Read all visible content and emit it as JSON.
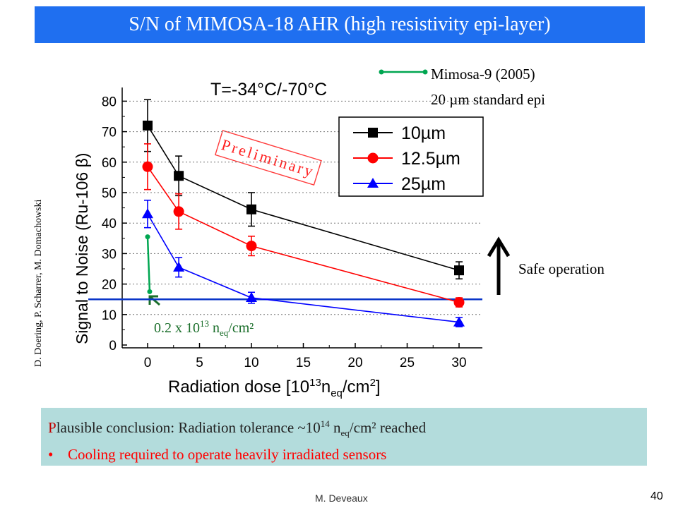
{
  "slide": {
    "title": "S/N of MIMOSA-18 AHR (high resistivity epi-layer)",
    "side_credit": "D. Doering, P. Scharrer, M. Domachowski",
    "temperature_label": "T=-34°C/-70°C",
    "preliminary_stamp": "Preliminary",
    "mimosa_label_line1": "Mimosa-9 (2005)",
    "mimosa_label_line2": "20 µm standard epi",
    "safe_operation": "Safe operation",
    "dose_annotation_main": "0.2 x 10",
    "dose_annotation_sup": "13",
    "dose_annotation_n": " n",
    "dose_annotation_sub": "eq",
    "dose_annotation_unit": "/cm²",
    "conclusion_first": "P",
    "conclusion_rest": "lausible conclusion: Radiation tolerance ~10",
    "conclusion_sup": "14",
    "conclusion_n": " n",
    "conclusion_sub": "eq",
    "conclusion_tail": "/cm² reached",
    "bullet_text": "Cooling required to operate heavily irradiated sensors",
    "author": "M. Deveaux",
    "page_number": "40"
  },
  "chart_data": {
    "type": "line",
    "ylabel": "Signal to Noise (Ru-106 β)",
    "xlabel": "Radiation dose [10¹³n_eq/cm²]",
    "xlim": [
      -2,
      32
    ],
    "ylim": [
      -1,
      85
    ],
    "x_ticks": [
      0,
      5,
      10,
      15,
      20,
      25,
      30
    ],
    "y_ticks": [
      0,
      10,
      20,
      30,
      40,
      50,
      60,
      70,
      80
    ],
    "threshold_y": 15,
    "series": [
      {
        "name": "10µm",
        "color": "#000000",
        "marker": "square",
        "x": [
          0,
          3,
          10,
          30
        ],
        "y": [
          72,
          55.5,
          44.5,
          24.5
        ],
        "err": [
          8.5,
          6.5,
          5.5,
          2.8
        ]
      },
      {
        "name": "12.5µm",
        "color": "#ff0000",
        "marker": "circle",
        "x": [
          0,
          3,
          10,
          30
        ],
        "y": [
          58.5,
          43.8,
          32.5,
          14
        ],
        "err": [
          7.5,
          5.8,
          3.2,
          1.5
        ]
      },
      {
        "name": "25µm",
        "color": "#0000ff",
        "marker": "triangle",
        "x": [
          0,
          3,
          10,
          30
        ],
        "y": [
          43,
          25.5,
          15.5,
          7.5
        ],
        "err": [
          4.5,
          3.2,
          1.8,
          1.5
        ]
      },
      {
        "name": "Mimosa-9 (2005)",
        "color": "#00a651",
        "marker": "dot",
        "x": [
          0,
          0.2
        ],
        "y": [
          35.5,
          17.5
        ]
      }
    ],
    "legend": [
      "10µm",
      "12.5µm",
      "25µm"
    ]
  }
}
